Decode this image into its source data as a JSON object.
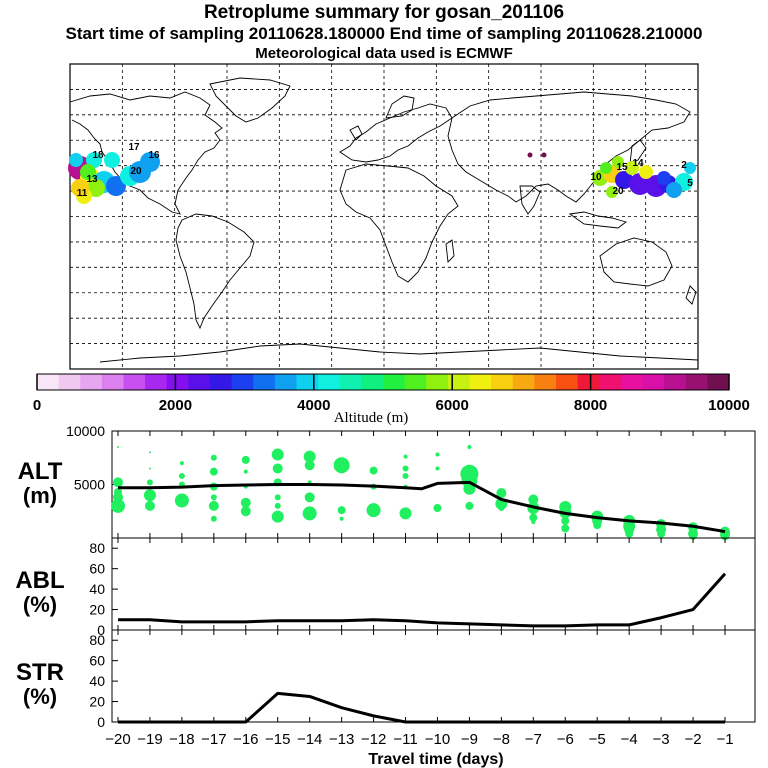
{
  "title": {
    "line1": "Retroplume summary for gosan_201106",
    "line2": "Start time of sampling 20110628.180000     End time of sampling 20110628.210000",
    "line3": "Meteorological data used is ECMWF"
  },
  "colorbar": {
    "label": "Altitude (m)",
    "tick_labels": [
      "0",
      "2000",
      "4000",
      "6000",
      "8000",
      "10000"
    ],
    "colors": [
      "#f8e6f8",
      "#f0c8f0",
      "#e8a6f0",
      "#dc80f0",
      "#c850f0",
      "#a828f0",
      "#8410f0",
      "#5a10e8",
      "#3418e8",
      "#1c40f0",
      "#1070f0",
      "#10a0f0",
      "#10d0f0",
      "#10f0e0",
      "#10f0b0",
      "#10f080",
      "#20f040",
      "#50f020",
      "#90f010",
      "#c8f010",
      "#f0f010",
      "#f8d010",
      "#f8a810",
      "#f88010",
      "#f85010",
      "#f01838",
      "#f01070",
      "#e810a0",
      "#d810a8",
      "#b81090",
      "#981070",
      "#701050"
    ]
  },
  "map": {
    "plume_labels": [
      {
        "t": "17",
        "c": "#10d0f0"
      },
      {
        "t": "16",
        "c": "#1c40f0"
      },
      {
        "t": "18",
        "c": "#10d0f0"
      },
      {
        "t": "20",
        "c": "#10d0f0"
      },
      {
        "t": "13",
        "c": "#f0f010"
      },
      {
        "t": "11",
        "c": "#90f010"
      },
      {
        "t": "15",
        "c": "#f0f010"
      },
      {
        "t": "14",
        "c": "#f0f010"
      },
      {
        "t": "10",
        "c": "#10f080"
      },
      {
        "t": "20",
        "c": "#90f010"
      },
      {
        "t": "5",
        "c": "#10d0f0"
      },
      {
        "t": "2",
        "c": "#f01838"
      }
    ]
  },
  "chart_data": [
    {
      "type": "scatter+line",
      "panel_label_line1": "ALT",
      "panel_label_line2": "(m)",
      "xlabel": "Travel time (days)",
      "ylabel": "ALT (m)",
      "xlim": [
        -20,
        -1
      ],
      "ylim": [
        0,
        10000
      ],
      "ytick_labels": [
        "5000",
        "10000"
      ],
      "xtick_labels": [
        "−20",
        "−19",
        "−18",
        "−17",
        "−16",
        "−15",
        "−14",
        "−13",
        "−12",
        "−11",
        "−10",
        "−9",
        "−8",
        "−7",
        "−6",
        "−5",
        "−4",
        "−3",
        "−2",
        "−1"
      ],
      "mean_line": {
        "x": [
          -20,
          -19,
          -18,
          -17,
          -16,
          -15,
          -14,
          -13,
          -12,
          -11,
          -10.5,
          -10,
          -9,
          -8,
          -7,
          -6,
          -5,
          -4,
          -3,
          -2,
          -1
        ],
        "y": [
          4700,
          4700,
          4750,
          4900,
          4950,
          5000,
          5000,
          4950,
          4850,
          4700,
          4600,
          5100,
          5200,
          3600,
          2900,
          2300,
          1900,
          1600,
          1400,
          1100,
          600
        ]
      },
      "points": [
        [
          -20,
          8500,
          1
        ],
        [
          -20,
          5200,
          5
        ],
        [
          -20,
          4300,
          4
        ],
        [
          -20,
          3800,
          5
        ],
        [
          -20,
          3000,
          7
        ],
        [
          -19,
          8000,
          1
        ],
        [
          -19,
          6500,
          1
        ],
        [
          -19,
          5200,
          3
        ],
        [
          -19,
          4000,
          6
        ],
        [
          -19,
          3000,
          5
        ],
        [
          -18,
          7000,
          2
        ],
        [
          -18,
          5800,
          3
        ],
        [
          -18,
          5000,
          3
        ],
        [
          -18,
          3500,
          7
        ],
        [
          -17,
          7500,
          3
        ],
        [
          -17,
          6200,
          4
        ],
        [
          -17,
          4800,
          4
        ],
        [
          -17,
          3800,
          3
        ],
        [
          -17,
          3000,
          5
        ],
        [
          -17,
          1800,
          3
        ],
        [
          -16,
          7300,
          4
        ],
        [
          -16,
          6200,
          2
        ],
        [
          -16,
          4800,
          2
        ],
        [
          -16,
          3300,
          5
        ],
        [
          -16,
          2500,
          5
        ],
        [
          -15,
          7800,
          6
        ],
        [
          -15,
          6500,
          5
        ],
        [
          -15,
          5200,
          4
        ],
        [
          -15,
          3800,
          3
        ],
        [
          -15,
          3000,
          3
        ],
        [
          -15,
          2000,
          6
        ],
        [
          -14,
          7600,
          6
        ],
        [
          -14,
          6800,
          5
        ],
        [
          -14,
          5200,
          2
        ],
        [
          -14,
          3800,
          5
        ],
        [
          -14,
          2300,
          7
        ],
        [
          -13,
          6800,
          8
        ],
        [
          -13,
          2600,
          4
        ],
        [
          -13,
          1800,
          2
        ],
        [
          -12,
          6300,
          4
        ],
        [
          -12,
          4800,
          3
        ],
        [
          -12,
          2600,
          7
        ],
        [
          -11,
          7600,
          2
        ],
        [
          -11,
          6500,
          3
        ],
        [
          -11,
          5800,
          3
        ],
        [
          -11,
          4800,
          2
        ],
        [
          -11,
          2300,
          6
        ],
        [
          -10,
          7800,
          2
        ],
        [
          -10,
          6500,
          2
        ],
        [
          -10,
          2800,
          4
        ],
        [
          -9,
          8500,
          2
        ],
        [
          -9,
          6000,
          9
        ],
        [
          -9,
          5400,
          8
        ],
        [
          -9,
          4600,
          6
        ],
        [
          -9,
          3000,
          4
        ],
        [
          -8,
          4200,
          5
        ],
        [
          -8,
          3200,
          6
        ],
        [
          -8,
          2800,
          3
        ],
        [
          -7,
          3600,
          5
        ],
        [
          -7,
          2800,
          6
        ],
        [
          -7,
          1900,
          4
        ],
        [
          -7,
          1500,
          2
        ],
        [
          -6,
          2900,
          6
        ],
        [
          -6,
          2400,
          6
        ],
        [
          -6,
          1600,
          4
        ],
        [
          -6,
          900,
          4
        ],
        [
          -5,
          2000,
          6
        ],
        [
          -5,
          1600,
          5
        ],
        [
          -5,
          1200,
          4
        ],
        [
          -4,
          1600,
          6
        ],
        [
          -4,
          1100,
          6
        ],
        [
          -4,
          800,
          5
        ],
        [
          -4,
          400,
          4
        ],
        [
          -3,
          1300,
          5
        ],
        [
          -3,
          800,
          5
        ],
        [
          -3,
          400,
          4
        ],
        [
          -2,
          1000,
          5
        ],
        [
          -2,
          400,
          5
        ],
        [
          -2,
          200,
          4
        ],
        [
          -1,
          600,
          5
        ],
        [
          -1,
          300,
          5
        ],
        [
          -1,
          150,
          4
        ]
      ]
    },
    {
      "type": "line",
      "panel_label_line1": "ABL",
      "panel_label_line2": "(%)",
      "ylabel": "ABL (%)",
      "xlim": [
        -20,
        -1
      ],
      "ylim": [
        0,
        90
      ],
      "ytick_labels": [
        "0",
        "20",
        "40",
        "60",
        "80"
      ],
      "x": [
        -20,
        -19,
        -18,
        -17,
        -16,
        -15,
        -14,
        -13,
        -12,
        -11,
        -10,
        -9,
        -8,
        -7,
        -6,
        -5,
        -4,
        -3,
        -2,
        -1
      ],
      "y": [
        10,
        10,
        8,
        8,
        8,
        9,
        9,
        9,
        10,
        9,
        7,
        6,
        5,
        4,
        4,
        5,
        5,
        12,
        20,
        55
      ]
    },
    {
      "type": "line",
      "panel_label_line1": "STR",
      "panel_label_line2": "(%)",
      "ylabel": "STR (%)",
      "xlim": [
        -20,
        -1
      ],
      "ylim": [
        0,
        90
      ],
      "ytick_labels": [
        "0",
        "20",
        "40",
        "60",
        "80"
      ],
      "x": [
        -20,
        -19,
        -18,
        -17,
        -16,
        -15,
        -14,
        -13,
        -12,
        -11,
        -10,
        -9,
        -8,
        -7,
        -6,
        -5,
        -4,
        -3,
        -2,
        -1
      ],
      "y": [
        0,
        0,
        0,
        0,
        0,
        28,
        25,
        14,
        6,
        0,
        0,
        0,
        0,
        0,
        0,
        0,
        0,
        0,
        0,
        0
      ]
    }
  ]
}
